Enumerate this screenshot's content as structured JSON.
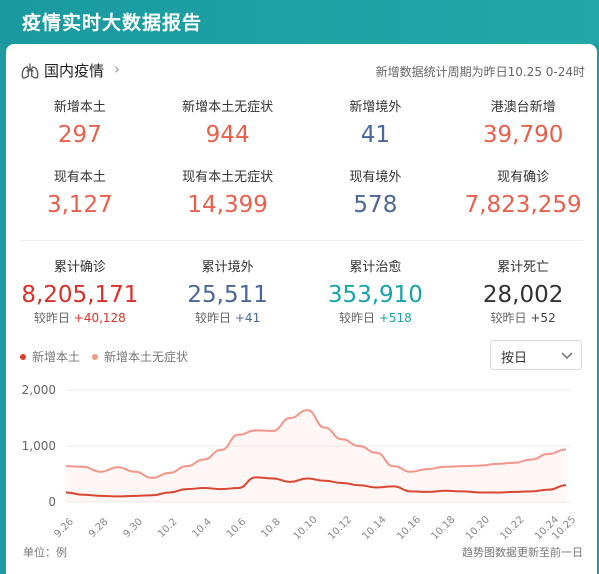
{
  "header": {
    "title": "疫情实时大数据报告"
  },
  "section": {
    "title": "国内疫情",
    "chevron": "›",
    "period_note": "新增数据统计周期为昨日10.25 0-24时"
  },
  "stats_row1": [
    {
      "label": "新增本土",
      "value": "297",
      "color": "#e8604c"
    },
    {
      "label": "新增本土无症状",
      "value": "944",
      "color": "#e8604c"
    },
    {
      "label": "新增境外",
      "value": "41",
      "color": "#4b6797"
    },
    {
      "label": "港澳台新增",
      "value": "39,790",
      "color": "#e8604c"
    }
  ],
  "stats_row2": [
    {
      "label": "现有本土",
      "value": "3,127",
      "color": "#e8604c"
    },
    {
      "label": "现有本土无症状",
      "value": "14,399",
      "color": "#e8604c"
    },
    {
      "label": "现有境外",
      "value": "578",
      "color": "#4b6797"
    },
    {
      "label": "现有确诊",
      "value": "7,823,259",
      "color": "#e8604c"
    }
  ],
  "stats_row3": [
    {
      "label": "累计确诊",
      "value": "8,205,171",
      "color": "#d8312b",
      "cmp_label": "较昨日",
      "cmp_value": "+40,128",
      "cmp_color": "#d8312b"
    },
    {
      "label": "累计境外",
      "value": "25,511",
      "color": "#4b6797",
      "cmp_label": "较昨日",
      "cmp_value": "+41",
      "cmp_color": "#4b6797"
    },
    {
      "label": "累计治愈",
      "value": "353,910",
      "color": "#17a3a9",
      "cmp_label": "较昨日",
      "cmp_value": "+518",
      "cmp_color": "#17a3a9"
    },
    {
      "label": "累计死亡",
      "value": "28,002",
      "color": "#333333",
      "cmp_label": "较昨日",
      "cmp_value": "+52",
      "cmp_color": "#444444"
    }
  ],
  "select": {
    "value": "按日"
  },
  "footer": {
    "unit": "单位：例",
    "note": "趋势图数据更新至前一日"
  },
  "icons": {
    "section": "lungs-icon",
    "select_caret": "chevron-down-icon"
  },
  "chart_data": {
    "type": "line",
    "title": "",
    "xlabel": "",
    "ylabel": "",
    "ylim": [
      0,
      2000
    ],
    "yticks": [
      "0",
      "1,000",
      "2,000"
    ],
    "grid": true,
    "legend_position": "top-left",
    "x": [
      "9.26",
      "9.27",
      "9.28",
      "9.29",
      "9.30",
      "10.1",
      "10.2",
      "10.3",
      "10.4",
      "10.5",
      "10.6",
      "10.7",
      "10.8",
      "10.9",
      "10.10",
      "10.11",
      "10.12",
      "10.13",
      "10.14",
      "10.15",
      "10.16",
      "10.17",
      "10.18",
      "10.19",
      "10.20",
      "10.21",
      "10.22",
      "10.23",
      "10.24",
      "10.25"
    ],
    "xtick_labels": [
      "9.26",
      "9.28",
      "9.30",
      "10.2",
      "10.4",
      "10.6",
      "10.8",
      "10.10",
      "10.12",
      "10.14",
      "10.16",
      "10.18",
      "10.20",
      "10.22",
      "10.24",
      "10.25"
    ],
    "series": [
      {
        "name": "新增本土",
        "color": "#d6402a",
        "values": [
          170,
          130,
          110,
          100,
          110,
          120,
          170,
          230,
          250,
          230,
          250,
          440,
          420,
          360,
          420,
          380,
          340,
          300,
          260,
          280,
          190,
          180,
          200,
          190,
          170,
          170,
          180,
          190,
          220,
          300
        ]
      },
      {
        "name": "新增本土无症状",
        "color": "#f3968a",
        "values": [
          640,
          630,
          540,
          620,
          540,
          430,
          520,
          640,
          760,
          930,
          1200,
          1280,
          1270,
          1500,
          1640,
          1330,
          1120,
          1000,
          880,
          640,
          540,
          590,
          630,
          640,
          650,
          680,
          700,
          760,
          860,
          940
        ]
      }
    ]
  }
}
